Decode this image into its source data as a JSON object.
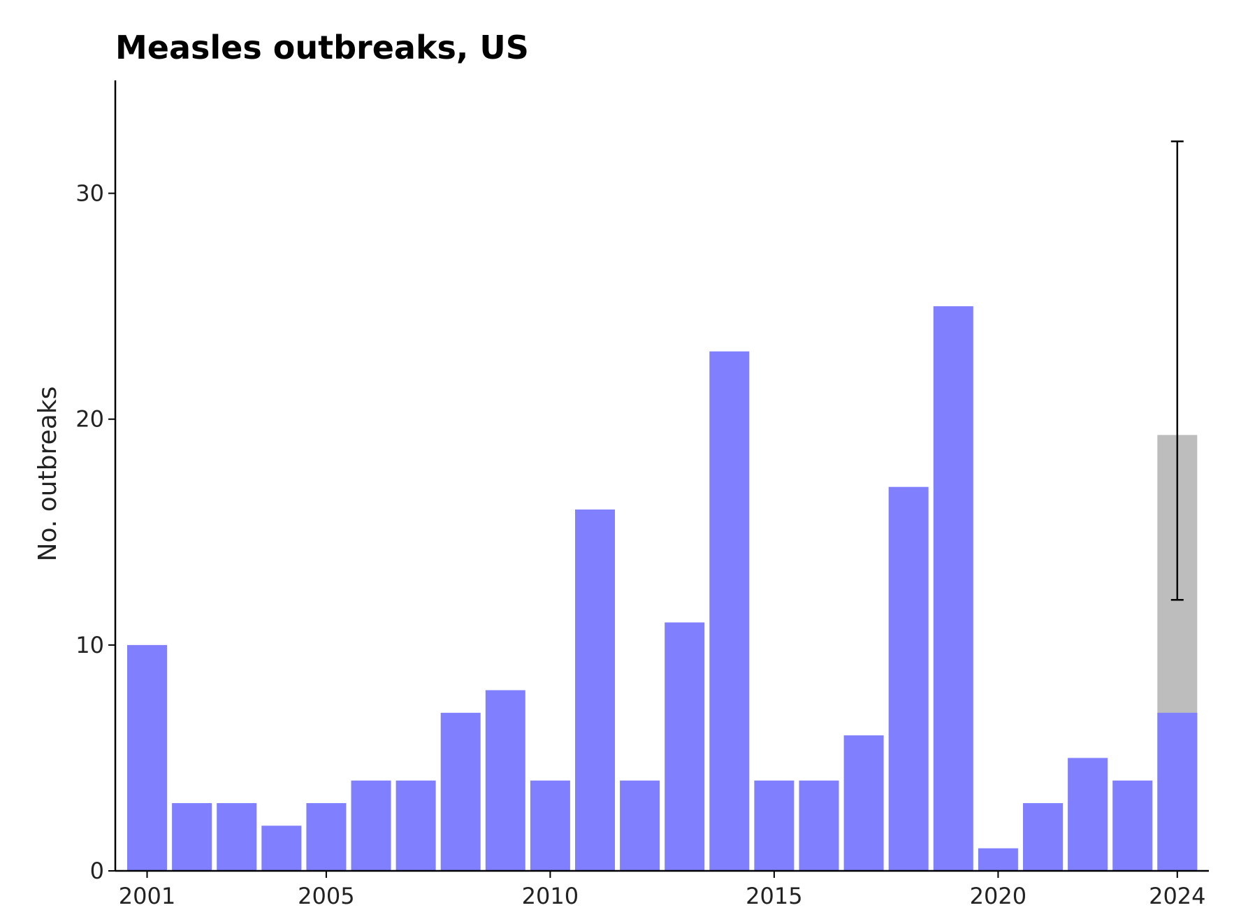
{
  "chart_data": {
    "type": "bar",
    "title": "Measles outbreaks, US",
    "xlabel": "",
    "ylabel": "No. outbreaks",
    "x": [
      2001,
      2002,
      2003,
      2004,
      2005,
      2006,
      2007,
      2008,
      2009,
      2010,
      2011,
      2012,
      2013,
      2014,
      2015,
      2016,
      2017,
      2018,
      2019,
      2020,
      2021,
      2022,
      2023,
      2024
    ],
    "values": [
      10,
      3,
      3,
      2,
      3,
      4,
      4,
      7,
      8,
      4,
      16,
      4,
      11,
      23,
      4,
      4,
      6,
      17,
      25,
      1,
      3,
      5,
      4,
      7
    ],
    "projection": {
      "x": 2024,
      "estimate": 19.3,
      "error_low": 12.0,
      "error_high": 32.3,
      "color": "#bdbdbd"
    },
    "ylim": [
      0,
      35
    ],
    "yticks": [
      0,
      10,
      20,
      30
    ],
    "xticks": [
      2001,
      2005,
      2010,
      2015,
      2020,
      2024
    ],
    "bar_color": "#8080ff",
    "grid": false,
    "legend": "none"
  }
}
